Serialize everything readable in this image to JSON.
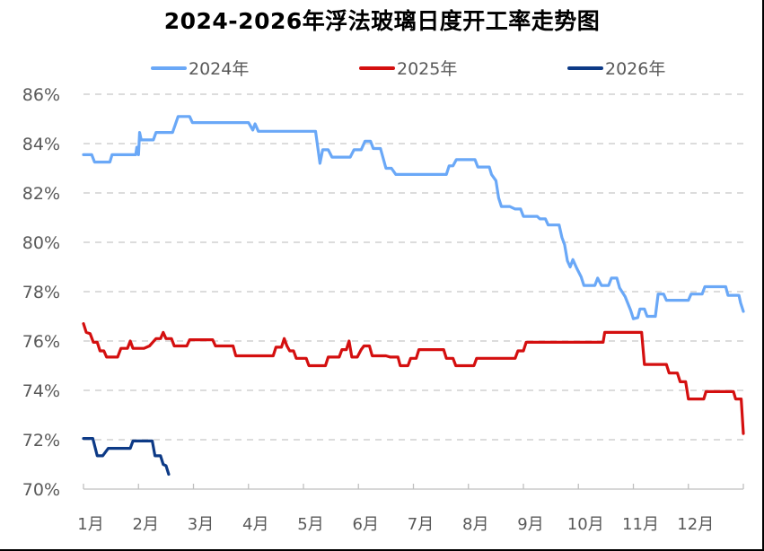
{
  "chart_data": {
    "type": "line",
    "title": "2024-2026年浮法玻璃日度开工率走势图",
    "xlabel": "",
    "ylabel": "",
    "ylim": [
      70,
      86
    ],
    "y_ticks": [
      "86%",
      "84%",
      "82%",
      "80%",
      "78%",
      "76%",
      "74%",
      "72%",
      "70%"
    ],
    "x_ticks": [
      "1月",
      "2月",
      "3月",
      "4月",
      "5月",
      "6月",
      "7月",
      "8月",
      "9月",
      "10月",
      "11月",
      "12月"
    ],
    "grid": "horizontal dashed",
    "legend_position": "top",
    "series": [
      {
        "name": "2024年",
        "color": "#6aa8f7",
        "points": [
          [
            1.0,
            83.55
          ],
          [
            1.15,
            83.55
          ],
          [
            1.2,
            83.25
          ],
          [
            1.48,
            83.25
          ],
          [
            1.52,
            83.55
          ],
          [
            1.95,
            83.55
          ],
          [
            1.97,
            83.85
          ],
          [
            2.0,
            83.55
          ],
          [
            2.02,
            84.45
          ],
          [
            2.05,
            84.15
          ],
          [
            2.27,
            84.15
          ],
          [
            2.32,
            84.45
          ],
          [
            2.62,
            84.45
          ],
          [
            2.72,
            85.1
          ],
          [
            2.93,
            85.1
          ],
          [
            2.98,
            84.85
          ],
          [
            4.0,
            84.85
          ],
          [
            4.08,
            84.55
          ],
          [
            4.12,
            84.8
          ],
          [
            4.18,
            84.5
          ],
          [
            5.22,
            84.5
          ],
          [
            5.3,
            83.2
          ],
          [
            5.35,
            83.75
          ],
          [
            5.45,
            83.75
          ],
          [
            5.52,
            83.45
          ],
          [
            5.85,
            83.45
          ],
          [
            5.92,
            83.75
          ],
          [
            6.05,
            83.75
          ],
          [
            6.12,
            84.1
          ],
          [
            6.22,
            84.1
          ],
          [
            6.27,
            83.8
          ],
          [
            6.4,
            83.8
          ],
          [
            6.5,
            83.0
          ],
          [
            6.6,
            83.0
          ],
          [
            6.68,
            82.75
          ],
          [
            7.6,
            82.75
          ],
          [
            7.65,
            83.1
          ],
          [
            7.72,
            83.1
          ],
          [
            7.78,
            83.35
          ],
          [
            8.12,
            83.35
          ],
          [
            8.17,
            83.05
          ],
          [
            8.38,
            83.05
          ],
          [
            8.42,
            82.75
          ],
          [
            8.5,
            82.5
          ],
          [
            8.55,
            81.8
          ],
          [
            8.6,
            81.45
          ],
          [
            8.75,
            81.45
          ],
          [
            8.85,
            81.35
          ],
          [
            8.95,
            81.35
          ],
          [
            9.0,
            81.05
          ],
          [
            9.25,
            81.05
          ],
          [
            9.3,
            80.95
          ],
          [
            9.4,
            80.95
          ],
          [
            9.45,
            80.7
          ],
          [
            9.65,
            80.7
          ],
          [
            9.7,
            80.2
          ],
          [
            9.75,
            79.9
          ],
          [
            9.8,
            79.25
          ],
          [
            9.85,
            79.0
          ],
          [
            9.9,
            79.3
          ],
          [
            9.97,
            78.95
          ],
          [
            10.05,
            78.6
          ],
          [
            10.1,
            78.25
          ],
          [
            10.3,
            78.25
          ],
          [
            10.35,
            78.55
          ],
          [
            10.42,
            78.25
          ],
          [
            10.55,
            78.25
          ],
          [
            10.6,
            78.55
          ],
          [
            10.7,
            78.55
          ],
          [
            10.75,
            78.15
          ],
          [
            10.85,
            77.8
          ],
          [
            10.95,
            77.25
          ],
          [
            11.0,
            76.9
          ],
          [
            11.08,
            76.95
          ],
          [
            11.12,
            77.3
          ],
          [
            11.2,
            77.3
          ],
          [
            11.25,
            77.0
          ],
          [
            11.4,
            77.0
          ],
          [
            11.45,
            77.9
          ],
          [
            11.55,
            77.9
          ],
          [
            11.6,
            77.65
          ],
          [
            12.0,
            77.65
          ],
          [
            12.05,
            77.9
          ],
          [
            12.25,
            77.9
          ],
          [
            12.3,
            78.2
          ],
          [
            12.68,
            78.2
          ],
          [
            12.72,
            77.85
          ],
          [
            12.92,
            77.85
          ],
          [
            12.95,
            77.55
          ],
          [
            13.0,
            77.2
          ]
        ]
      },
      {
        "name": "2025年",
        "color": "#d40f0f",
        "points": [
          [
            1.0,
            76.7
          ],
          [
            1.05,
            76.35
          ],
          [
            1.12,
            76.3
          ],
          [
            1.18,
            75.95
          ],
          [
            1.25,
            75.95
          ],
          [
            1.3,
            75.6
          ],
          [
            1.37,
            75.6
          ],
          [
            1.42,
            75.35
          ],
          [
            1.62,
            75.35
          ],
          [
            1.68,
            75.7
          ],
          [
            1.8,
            75.7
          ],
          [
            1.85,
            76.0
          ],
          [
            1.9,
            75.7
          ],
          [
            2.1,
            75.7
          ],
          [
            2.2,
            75.8
          ],
          [
            2.32,
            76.1
          ],
          [
            2.4,
            76.1
          ],
          [
            2.45,
            76.35
          ],
          [
            2.5,
            76.1
          ],
          [
            2.6,
            76.1
          ],
          [
            2.65,
            75.8
          ],
          [
            2.88,
            75.8
          ],
          [
            2.93,
            76.05
          ],
          [
            3.35,
            76.05
          ],
          [
            3.4,
            75.8
          ],
          [
            3.72,
            75.8
          ],
          [
            3.77,
            75.4
          ],
          [
            4.45,
            75.4
          ],
          [
            4.5,
            75.75
          ],
          [
            4.6,
            75.75
          ],
          [
            4.65,
            76.1
          ],
          [
            4.7,
            75.8
          ],
          [
            4.75,
            75.6
          ],
          [
            4.82,
            75.6
          ],
          [
            4.87,
            75.3
          ],
          [
            5.05,
            75.3
          ],
          [
            5.1,
            75.0
          ],
          [
            5.4,
            75.0
          ],
          [
            5.45,
            75.35
          ],
          [
            5.65,
            75.35
          ],
          [
            5.7,
            75.65
          ],
          [
            5.78,
            75.65
          ],
          [
            5.83,
            76.0
          ],
          [
            5.88,
            75.35
          ],
          [
            5.98,
            75.35
          ],
          [
            6.05,
            75.65
          ],
          [
            6.1,
            75.8
          ],
          [
            6.2,
            75.8
          ],
          [
            6.25,
            75.4
          ],
          [
            6.5,
            75.4
          ],
          [
            6.58,
            75.35
          ],
          [
            6.72,
            75.35
          ],
          [
            6.76,
            75.0
          ],
          [
            6.9,
            75.0
          ],
          [
            6.95,
            75.3
          ],
          [
            7.05,
            75.3
          ],
          [
            7.1,
            75.65
          ],
          [
            7.55,
            75.65
          ],
          [
            7.6,
            75.3
          ],
          [
            7.72,
            75.3
          ],
          [
            7.77,
            75.0
          ],
          [
            8.1,
            75.0
          ],
          [
            8.15,
            75.3
          ],
          [
            8.85,
            75.3
          ],
          [
            8.9,
            75.6
          ],
          [
            9.0,
            75.6
          ],
          [
            9.05,
            75.95
          ],
          [
            10.45,
            75.95
          ],
          [
            10.48,
            76.35
          ],
          [
            11.15,
            76.35
          ],
          [
            11.2,
            75.05
          ],
          [
            11.6,
            75.05
          ],
          [
            11.65,
            74.7
          ],
          [
            11.8,
            74.7
          ],
          [
            11.85,
            74.35
          ],
          [
            11.95,
            74.35
          ],
          [
            12.0,
            73.65
          ],
          [
            12.28,
            73.65
          ],
          [
            12.32,
            73.95
          ],
          [
            12.82,
            73.95
          ],
          [
            12.86,
            73.65
          ],
          [
            12.96,
            73.65
          ],
          [
            13.0,
            72.25
          ]
        ]
      },
      {
        "name": "2026年",
        "color": "#0d3a86",
        "points": [
          [
            1.0,
            72.05
          ],
          [
            1.17,
            72.05
          ],
          [
            1.25,
            71.35
          ],
          [
            1.35,
            71.35
          ],
          [
            1.45,
            71.65
          ],
          [
            1.85,
            71.65
          ],
          [
            1.9,
            71.95
          ],
          [
            2.25,
            71.95
          ],
          [
            2.3,
            71.35
          ],
          [
            2.4,
            71.35
          ],
          [
            2.45,
            71.0
          ],
          [
            2.5,
            70.95
          ],
          [
            2.55,
            70.6
          ]
        ]
      }
    ]
  },
  "legend": [
    {
      "label": "2024年",
      "color": "#6aa8f7"
    },
    {
      "label": "2025年",
      "color": "#d40f0f"
    },
    {
      "label": "2026年",
      "color": "#0d3a86"
    }
  ],
  "style": {
    "grid_color": "#c8c8c8",
    "axis_color": "#bfbfbf",
    "tick_label_color": "#595959"
  }
}
